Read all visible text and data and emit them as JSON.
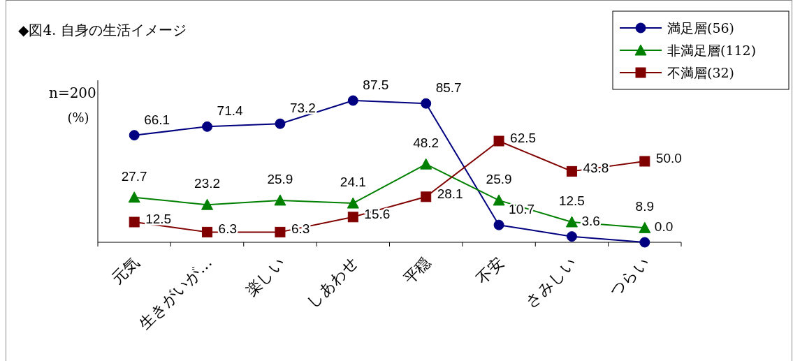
{
  "chart_data": {
    "type": "line",
    "title": "◆図4. 自身の生活イメージ",
    "ylabel": "(%)",
    "annotations": [
      "n=200"
    ],
    "categories": [
      "元気",
      "生きがいが…",
      "楽しい",
      "しあわせ",
      "平穏",
      "不安",
      "さみしい",
      "つらい"
    ],
    "ylim": [
      0,
      100
    ],
    "legend": "top right",
    "series": [
      {
        "name": "満足層(56)",
        "color": "#000080",
        "marker": "circle",
        "values": [
          66.1,
          71.4,
          73.2,
          87.5,
          85.7,
          10.7,
          3.6,
          0.0
        ],
        "value_labels": [
          "66.1",
          "71.4",
          "73.2",
          "87.5",
          "85.7",
          "10.7",
          "3.6",
          "0.0"
        ]
      },
      {
        "name": "非満足層(112)",
        "color": "#008000",
        "marker": "triangle",
        "values": [
          27.7,
          23.2,
          25.9,
          24.1,
          48.2,
          25.9,
          12.5,
          8.9
        ],
        "value_labels": [
          "27.7",
          "23.2",
          "25.9",
          "24.1",
          "48.2",
          "25.9",
          "12.5",
          "8.9"
        ]
      },
      {
        "name": "不満層(32)",
        "color": "#800000",
        "marker": "square",
        "values": [
          12.5,
          6.3,
          6.3,
          15.6,
          28.1,
          62.5,
          43.8,
          50.0
        ],
        "value_labels": [
          "12.5",
          "6.3",
          "6.3",
          "15.6",
          "28.1",
          "62.5",
          "43.8",
          "50.0"
        ]
      }
    ]
  }
}
